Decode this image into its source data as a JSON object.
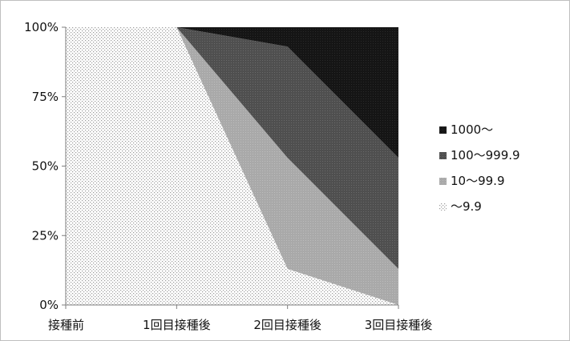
{
  "chart_data": {
    "type": "area",
    "stacked": true,
    "normalized": true,
    "categories": [
      "接種前",
      "1回目接種後",
      "2回目接種後",
      "3回目接種後"
    ],
    "ylim": [
      0,
      100
    ],
    "y_ticks": [
      "0%",
      "25%",
      "50%",
      "75%",
      "100%"
    ],
    "grid": false,
    "legend_position": "right",
    "series": [
      {
        "name": "～9.9",
        "values": [
          100,
          100,
          13,
          0
        ],
        "pattern": "dots-light"
      },
      {
        "name": "10～99.9",
        "values": [
          0,
          0,
          40,
          13
        ],
        "pattern": "light-gray"
      },
      {
        "name": "100～999.9",
        "values": [
          0,
          0,
          40,
          40
        ],
        "pattern": "dark-gray"
      },
      {
        "name": "1000～",
        "values": [
          0,
          0,
          7,
          47
        ],
        "pattern": "black"
      }
    ]
  }
}
